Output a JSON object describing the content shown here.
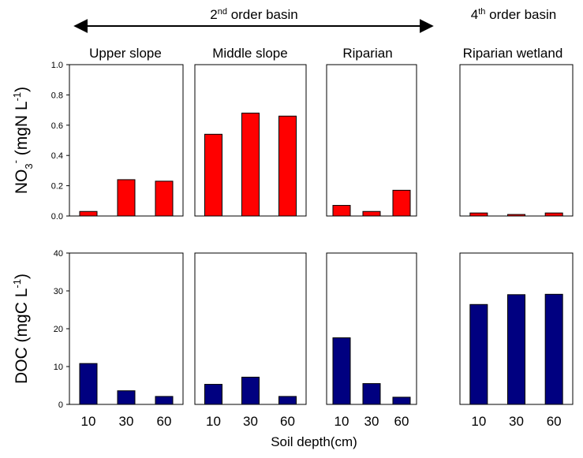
{
  "header": {
    "basin_2nd_num": "2",
    "basin_2nd_sup": "nd",
    "basin_2nd_rest": " order basin",
    "basin_4th_num": "4",
    "basin_4th_sup": "th",
    "basin_4th_rest": " order basin"
  },
  "xlabel": "Soil depth(cm)",
  "colors": {
    "nitrate": "#ff0000",
    "doc": "#000080"
  },
  "chart_data": [
    {
      "type": "bar",
      "id": "nitrate",
      "ylabel": {
        "main": "NO",
        "sub": "3",
        "sup": "-",
        "unit": " (mgN L",
        "unit_sup": "-1",
        "close": ")"
      },
      "ylim": [
        0,
        1.0
      ],
      "yticks": [
        "0.0",
        "0.2",
        "0.4",
        "0.6",
        "0.8",
        "1.0"
      ],
      "categories": [
        "10",
        "30",
        "60"
      ],
      "panels": [
        {
          "title": "Upper slope",
          "values": [
            0.03,
            0.24,
            0.23
          ]
        },
        {
          "title": "Middle slope",
          "values": [
            0.54,
            0.68,
            0.66
          ]
        },
        {
          "title": "Riparian",
          "values": [
            0.07,
            0.03,
            0.17
          ]
        },
        {
          "title": "Riparian wetland",
          "values": [
            0.02,
            0.01,
            0.02
          ]
        }
      ]
    },
    {
      "type": "bar",
      "id": "doc",
      "ylabel": {
        "main": "DOC",
        "unit": " (mgC L",
        "unit_sup": "-1",
        "close": ")"
      },
      "ylim": [
        0,
        40
      ],
      "yticks": [
        "0",
        "10",
        "20",
        "30",
        "40"
      ],
      "categories": [
        "10",
        "30",
        "60"
      ],
      "panels": [
        {
          "values": [
            10.8,
            3.6,
            2.1
          ]
        },
        {
          "values": [
            5.3,
            7.2,
            2.1
          ]
        },
        {
          "values": [
            17.6,
            5.5,
            1.9
          ]
        },
        {
          "values": [
            26.4,
            29.0,
            29.1
          ]
        }
      ]
    }
  ]
}
